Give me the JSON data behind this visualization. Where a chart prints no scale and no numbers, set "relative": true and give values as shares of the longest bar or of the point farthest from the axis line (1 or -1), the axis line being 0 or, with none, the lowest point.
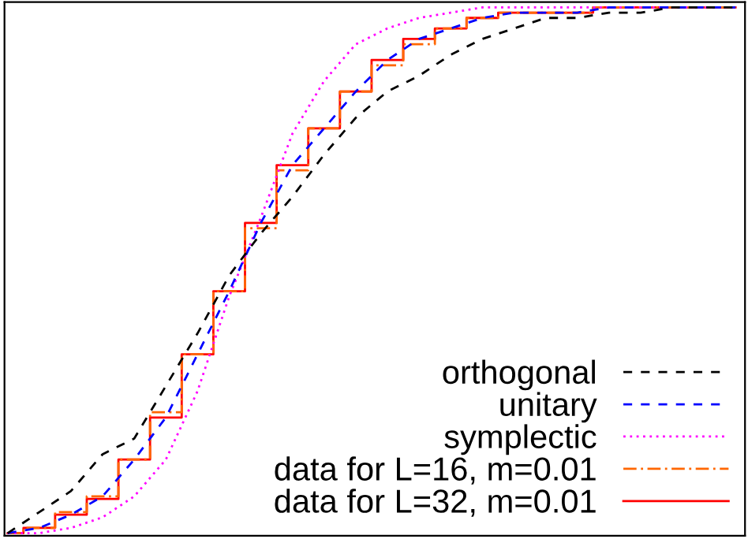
{
  "chart_data": {
    "type": "line",
    "relative": true,
    "legend": "bottom right",
    "categories": [
      null,
      null,
      null,
      null,
      null,
      null,
      null,
      null,
      null,
      null,
      null,
      null,
      null,
      null,
      null,
      null,
      null,
      null,
      null,
      null,
      null,
      null,
      null,
      null
    ],
    "series": [
      {
        "name": "orthogonal",
        "color": "#000000",
        "line_style": "dashed",
        "values": [
          0.0,
          0.04,
          0.08,
          0.15,
          0.18,
          0.28,
          0.38,
          0.49,
          0.57,
          0.64,
          0.72,
          0.79,
          0.84,
          0.87,
          0.91,
          0.94,
          0.96,
          0.98,
          0.98,
          0.99,
          0.99,
          1.0,
          1.0,
          1.0
        ]
      },
      {
        "name": "unitary",
        "color": "#0000ff",
        "line_style": "dashed",
        "values": [
          0.0,
          0.01,
          0.035,
          0.07,
          0.14,
          0.22,
          0.34,
          0.46,
          0.59,
          0.7,
          0.77,
          0.84,
          0.9,
          0.94,
          0.96,
          0.98,
          0.99,
          0.99,
          0.99,
          1.0,
          1.0,
          1.0,
          1.0,
          1.0
        ]
      },
      {
        "name": "symplectic",
        "color": "#ff00ff",
        "line_style": "dotted",
        "values": [
          0.0,
          0.0,
          0.01,
          0.03,
          0.07,
          0.14,
          0.27,
          0.45,
          0.6,
          0.76,
          0.86,
          0.93,
          0.96,
          0.98,
          0.99,
          1.0,
          1.0,
          1.0,
          1.0,
          1.0,
          1.0,
          1.0,
          1.0,
          1.0
        ]
      },
      {
        "name": "data for L=16, m=0.01",
        "color": "#ff6600",
        "type": "step",
        "line_style": "dashdot",
        "values": [
          0.0,
          0.01,
          0.04,
          0.07,
          0.14,
          0.23,
          0.34,
          0.46,
          0.58,
          0.69,
          0.77,
          0.84,
          0.89,
          0.93,
          0.96,
          0.98,
          0.99,
          0.99,
          0.99,
          1.0,
          1.0,
          1.0,
          1.0,
          1.0
        ]
      },
      {
        "name": "data for L=32, m=0.01",
        "color": "#ff0000",
        "type": "step",
        "line_style": "solid",
        "values": [
          0.0,
          0.01,
          0.035,
          0.065,
          0.14,
          0.22,
          0.34,
          0.46,
          0.59,
          0.7,
          0.77,
          0.84,
          0.9,
          0.94,
          0.96,
          0.98,
          0.99,
          0.99,
          0.99,
          1.0,
          1.0,
          1.0,
          1.0,
          1.0
        ]
      }
    ]
  }
}
